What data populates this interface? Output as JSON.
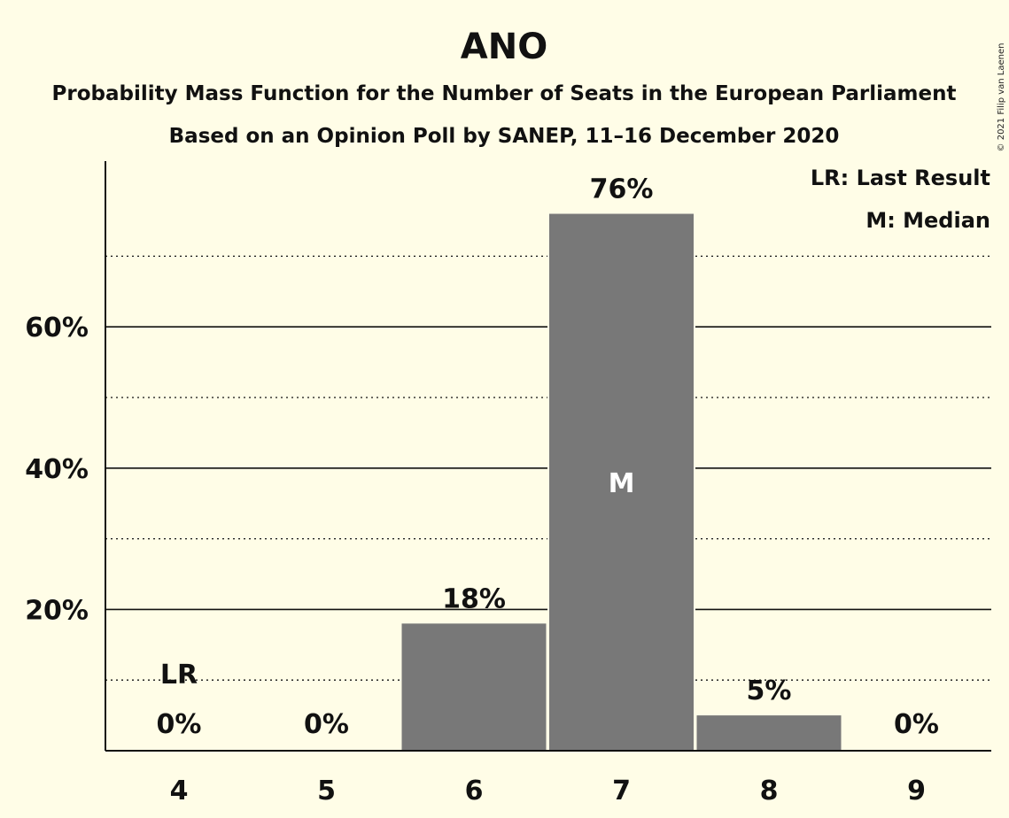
{
  "chart_data": {
    "type": "bar",
    "title": "ANO",
    "subtitle": "Probability Mass Function for the Number of Seats in the European Parliament",
    "subtitle2": "Based on an Opinion Poll by SANEP, 11–16 December 2020",
    "copyright": "© 2021 Filip van Laenen",
    "categories": [
      "4",
      "5",
      "6",
      "7",
      "8",
      "9"
    ],
    "values": [
      0,
      0,
      18,
      76,
      5,
      0
    ],
    "value_labels": [
      "0%",
      "0%",
      "18%",
      "76%",
      "5%",
      "0%"
    ],
    "ylim": [
      0,
      80
    ],
    "y_ticks": [
      20,
      40,
      60
    ],
    "y_tick_labels": [
      "20%",
      "40%",
      "60%"
    ],
    "y_minor_ticks": [
      10,
      30,
      50,
      70
    ],
    "last_result": {
      "category": "4",
      "label": "LR"
    },
    "median": {
      "category": "7",
      "label": "M"
    },
    "legend": [
      "LR: Last Result",
      "M: Median"
    ],
    "bar_color": "#787878",
    "background": "#fffde7"
  }
}
